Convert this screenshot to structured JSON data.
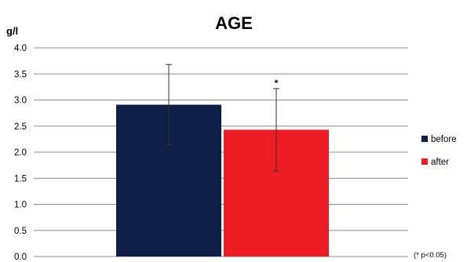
{
  "chart_data": {
    "type": "bar",
    "title": "AGE",
    "ylabel": "g/l",
    "xlabel": "",
    "ylim": [
      0,
      4.0
    ],
    "yticks": [
      0.0,
      0.5,
      1.0,
      1.5,
      2.0,
      2.5,
      3.0,
      3.5,
      4.0
    ],
    "ytick_labels": [
      "0.0",
      "0.5",
      "1.0",
      "1.5",
      "2.0",
      "2.5",
      "3.0",
      "3.5",
      "4.0"
    ],
    "grid": true,
    "legend_position": "right",
    "series": [
      {
        "name": "before",
        "value": 2.91,
        "error": 0.77,
        "color": "#0f1e45",
        "significance": ""
      },
      {
        "name": "after",
        "value": 2.43,
        "error": 0.79,
        "color": "#ee1c25",
        "significance": "*"
      }
    ],
    "annotation": "(* p<0.05)"
  }
}
